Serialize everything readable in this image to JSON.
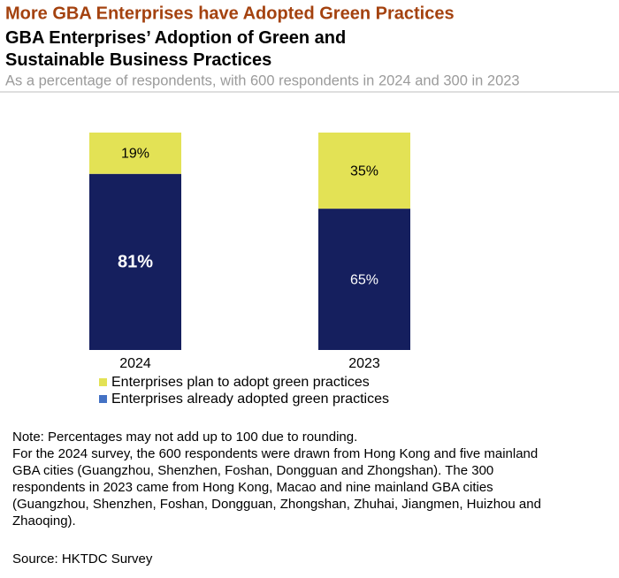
{
  "chart_data": {
    "type": "stacked_bar",
    "title": "More GBA Enterprises have Adopted Green Practices",
    "subtitle": "GBA Enterprises’ Adoption of Green and Sustainable Business Practices",
    "description": "As a percentage of respondents, with 600 respondents in 2024 and 300 in 2023",
    "categories": [
      "2024",
      "2023"
    ],
    "series": [
      {
        "name": "Enterprises already adopted green practices",
        "color": "#151f5e",
        "values": [
          81,
          65
        ],
        "value_labels": [
          "81%",
          "65%"
        ]
      },
      {
        "name": "Enterprises plan to adopt green practices",
        "color": "#e3e255",
        "values": [
          19,
          35
        ],
        "value_labels": [
          "19%",
          "35%"
        ]
      }
    ],
    "ylim": [
      0,
      100
    ],
    "notes": [
      "Note: Percentages may not add up to 100 due to rounding.",
      "For the 2024 survey, the 600 respondents were drawn from Hong Kong and five mainland",
      "GBA cities (Guangzhou, Shenzhen, Foshan, Dongguan and Zhongshan). The 300",
      "respondents in 2023 came from Hong Kong, Macao and nine mainland GBA cities",
      "(Guangzhou, Shenzhen, Foshan, Dongguan, Zhongshan, Zhuhai, Jiangmen, Huizhou and",
      "Zhaoqing)."
    ],
    "source": "Source: HKTDC Survey"
  }
}
